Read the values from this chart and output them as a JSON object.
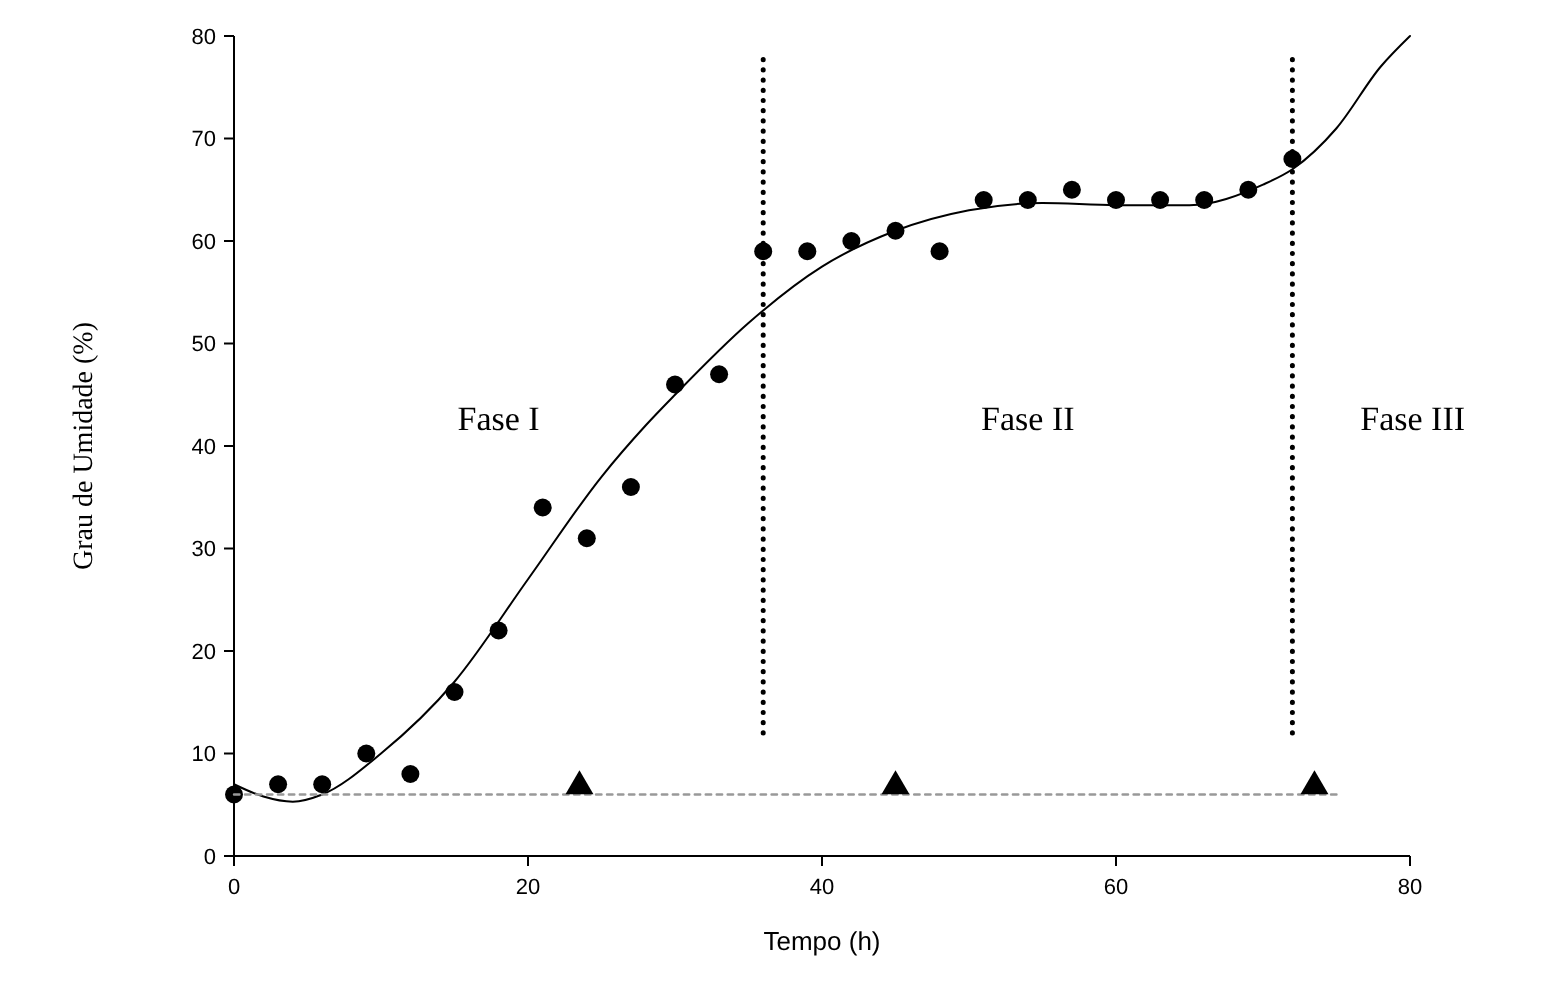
{
  "chart_data": {
    "type": "scatter",
    "xlabel": "Tempo (h)",
    "ylabel": "Grau de Umidade (%)",
    "xlim": [
      0,
      80
    ],
    "xticks": [
      0,
      20,
      40,
      60,
      80
    ],
    "ylim": [
      0,
      80
    ],
    "yticks": [
      0,
      10,
      20,
      30,
      40,
      50,
      60,
      70,
      80
    ],
    "grid": false,
    "series": [
      {
        "type": "scatter",
        "marker": "circle",
        "color": "#000000",
        "x": [
          0,
          3,
          6,
          9,
          12,
          15,
          18,
          21,
          24,
          27,
          30,
          33,
          36,
          39,
          42,
          45,
          48,
          51,
          54,
          57,
          60,
          63,
          66,
          69,
          72
        ],
        "values": [
          6,
          7,
          7,
          10,
          8,
          16,
          22,
          34,
          31,
          36,
          46,
          47,
          59,
          59,
          60,
          61,
          59,
          64,
          64,
          65,
          64,
          64,
          64,
          65,
          68
        ]
      },
      {
        "type": "line",
        "marker": "none",
        "line_style": "solid",
        "color": "#000000",
        "x": [
          0,
          2,
          4,
          6,
          10,
          15,
          20,
          25,
          28,
          30,
          35,
          40,
          45,
          50,
          55,
          60,
          65,
          70,
          72,
          75,
          78,
          80
        ],
        "values": [
          7,
          5.8,
          5.3,
          6,
          10,
          17,
          27,
          37,
          42,
          45,
          52,
          57.5,
          61,
          63,
          63.7,
          63.5,
          63.5,
          65.5,
          67,
          71,
          77,
          80
        ]
      },
      {
        "type": "line",
        "marker": "none",
        "line_style": "dotted",
        "color": "#999999",
        "x": [
          0,
          75
        ],
        "values": [
          6,
          6
        ]
      },
      {
        "type": "scatter",
        "marker": "triangle",
        "color": "#000000",
        "x": [
          23.5,
          45,
          73.5
        ],
        "values": [
          7,
          7,
          7
        ]
      }
    ],
    "ref_lines": [
      {
        "axis": "x",
        "value": 36,
        "line_style": "dotted",
        "color": "#000000"
      },
      {
        "axis": "x",
        "value": 72,
        "line_style": "dotted",
        "color": "#000000"
      }
    ],
    "annotations": [
      "Fase I",
      "Fase II",
      "Fase III"
    ]
  }
}
